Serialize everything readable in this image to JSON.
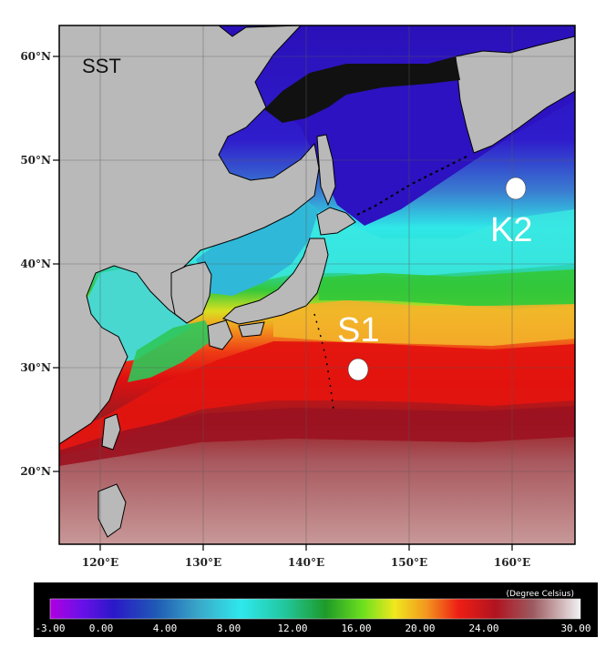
{
  "map": {
    "title": "SST",
    "lon_ticks": [
      "120°E",
      "130°E",
      "140°E",
      "150°E",
      "160°E"
    ],
    "lat_ticks": [
      "60°N",
      "50°N",
      "40°N",
      "30°N",
      "20°N"
    ],
    "stations": [
      {
        "id": "s1",
        "label": "S1",
        "lon": 145,
        "lat": 29.8
      },
      {
        "id": "k2",
        "label": "K2",
        "lon": 160.5,
        "lat": 47.5
      }
    ]
  },
  "colorbar": {
    "unit": "(Degree Celsius)",
    "tick_labels": [
      "-3.00",
      "0.00",
      "4.00",
      "8.00",
      "12.00",
      "16.00",
      "20.00",
      "24.00",
      "30.00"
    ]
  },
  "colors": {
    "land": "#b9b9b9",
    "border": "#000000",
    "station_marker": "#ffffff",
    "warm": "#e01010",
    "cold": "#3a16c4"
  }
}
